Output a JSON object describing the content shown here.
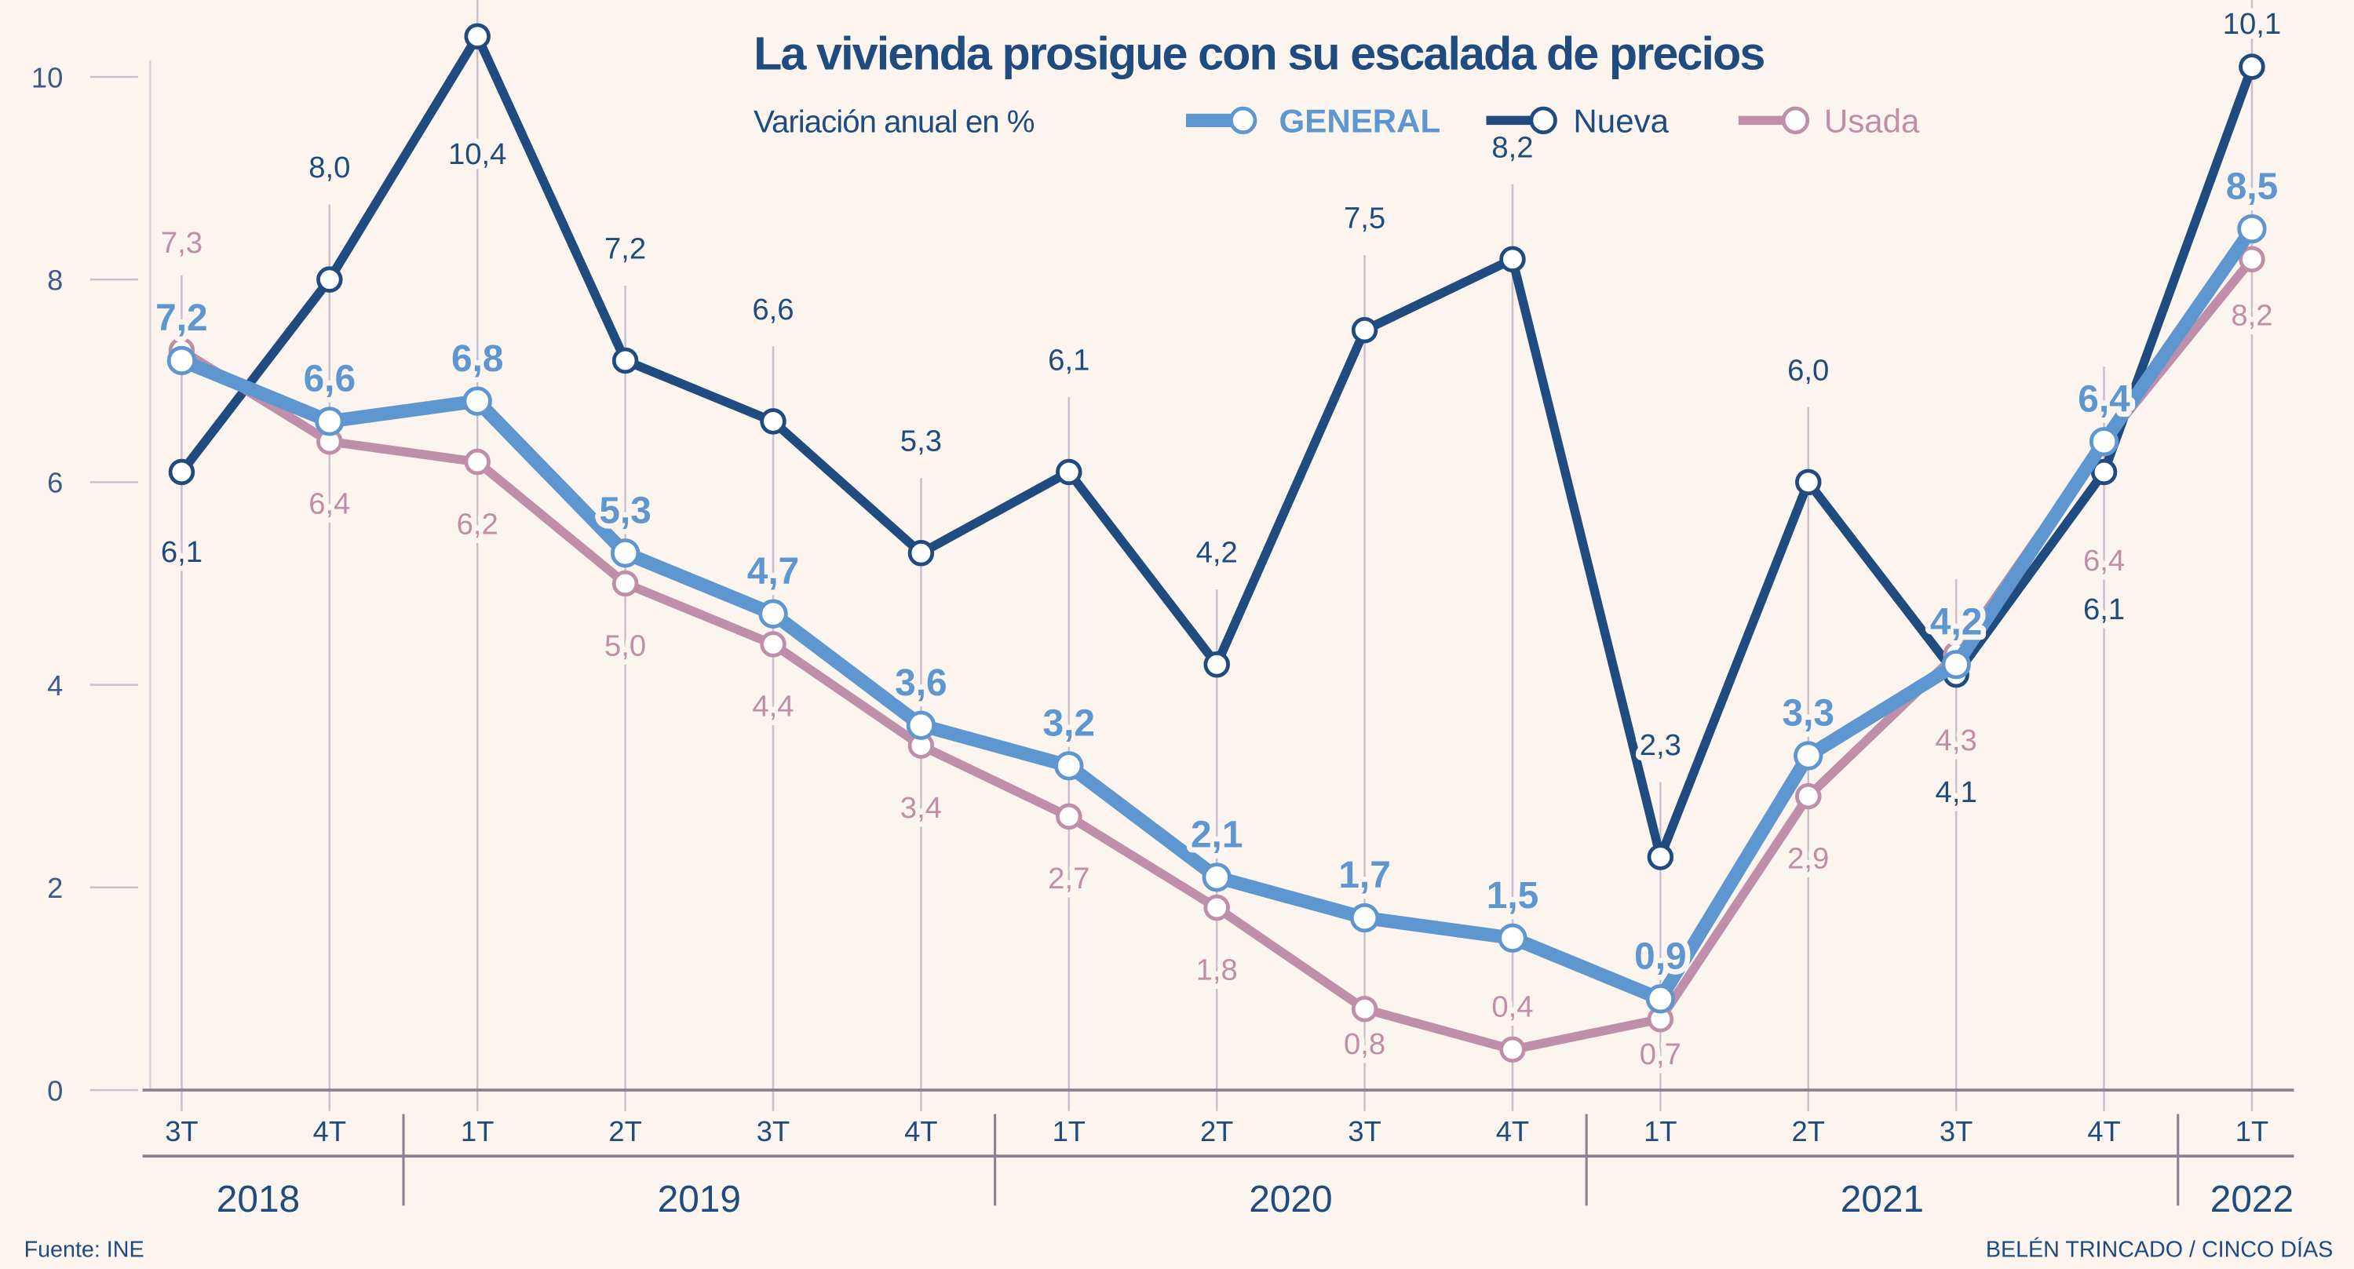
{
  "chart_data": {
    "type": "line",
    "title": "La vivienda prosigue con su escalada de precios",
    "subtitle": "Variación anual en %",
    "categories": [
      "3T",
      "4T",
      "1T",
      "2T",
      "3T",
      "4T",
      "1T",
      "2T",
      "3T",
      "4T",
      "1T",
      "2T",
      "3T",
      "4T",
      "1T"
    ],
    "years": [
      {
        "label": "2018",
        "quarters": 2
      },
      {
        "label": "2019",
        "quarters": 4
      },
      {
        "label": "2020",
        "quarters": 4
      },
      {
        "label": "2021",
        "quarters": 4
      },
      {
        "label": "2022",
        "quarters": 1
      }
    ],
    "yticks": [
      "0",
      "2",
      "4",
      "6",
      "8",
      "10"
    ],
    "ylim": [
      0,
      10.5
    ],
    "grid": false,
    "legend_position": "top",
    "series": [
      {
        "name": "GENERAL",
        "color": "#5e96d0",
        "values": [
          7.2,
          6.6,
          6.8,
          5.3,
          4.7,
          3.6,
          3.2,
          2.1,
          1.7,
          1.5,
          0.9,
          3.3,
          4.2,
          6.4,
          8.5
        ],
        "labels": [
          "7,2",
          "6,6",
          "6,8",
          "5,3",
          "4,7",
          "3,6",
          "3,2",
          "2,1",
          "1,7",
          "1,5",
          "0,9",
          "3,3",
          "4,2",
          "6,4",
          "8,5"
        ]
      },
      {
        "name": "Nueva",
        "color": "#1f4b7f",
        "values": [
          6.1,
          8.0,
          10.4,
          7.2,
          6.6,
          5.3,
          6.1,
          4.2,
          7.5,
          8.2,
          2.3,
          6.0,
          4.1,
          6.1,
          10.1
        ],
        "labels": [
          "6,1",
          "8,0",
          "10,4",
          "7,2",
          "6,6",
          "5,3",
          "6,1",
          "4,2",
          "7,5",
          "8,2",
          "2,3",
          "6,0",
          "4,1",
          "6,1",
          "10,1"
        ]
      },
      {
        "name": "Usada",
        "color": "#bf8ea8",
        "values": [
          7.3,
          6.4,
          6.2,
          5.0,
          4.4,
          3.4,
          2.7,
          1.8,
          0.8,
          0.4,
          0.7,
          2.9,
          4.3,
          6.4,
          8.2
        ],
        "labels": [
          "7,3",
          "6,4",
          "6,2",
          "5,0",
          "4,4",
          "3,4",
          "2,7",
          "1,8",
          "0,8",
          "0,4",
          "0,7",
          "2,9",
          "4,3",
          "6,4",
          "8,2"
        ]
      }
    ],
    "source": "Fuente: INE",
    "credit": "BELÉN TRINCADO / CINCO DÍAS"
  }
}
